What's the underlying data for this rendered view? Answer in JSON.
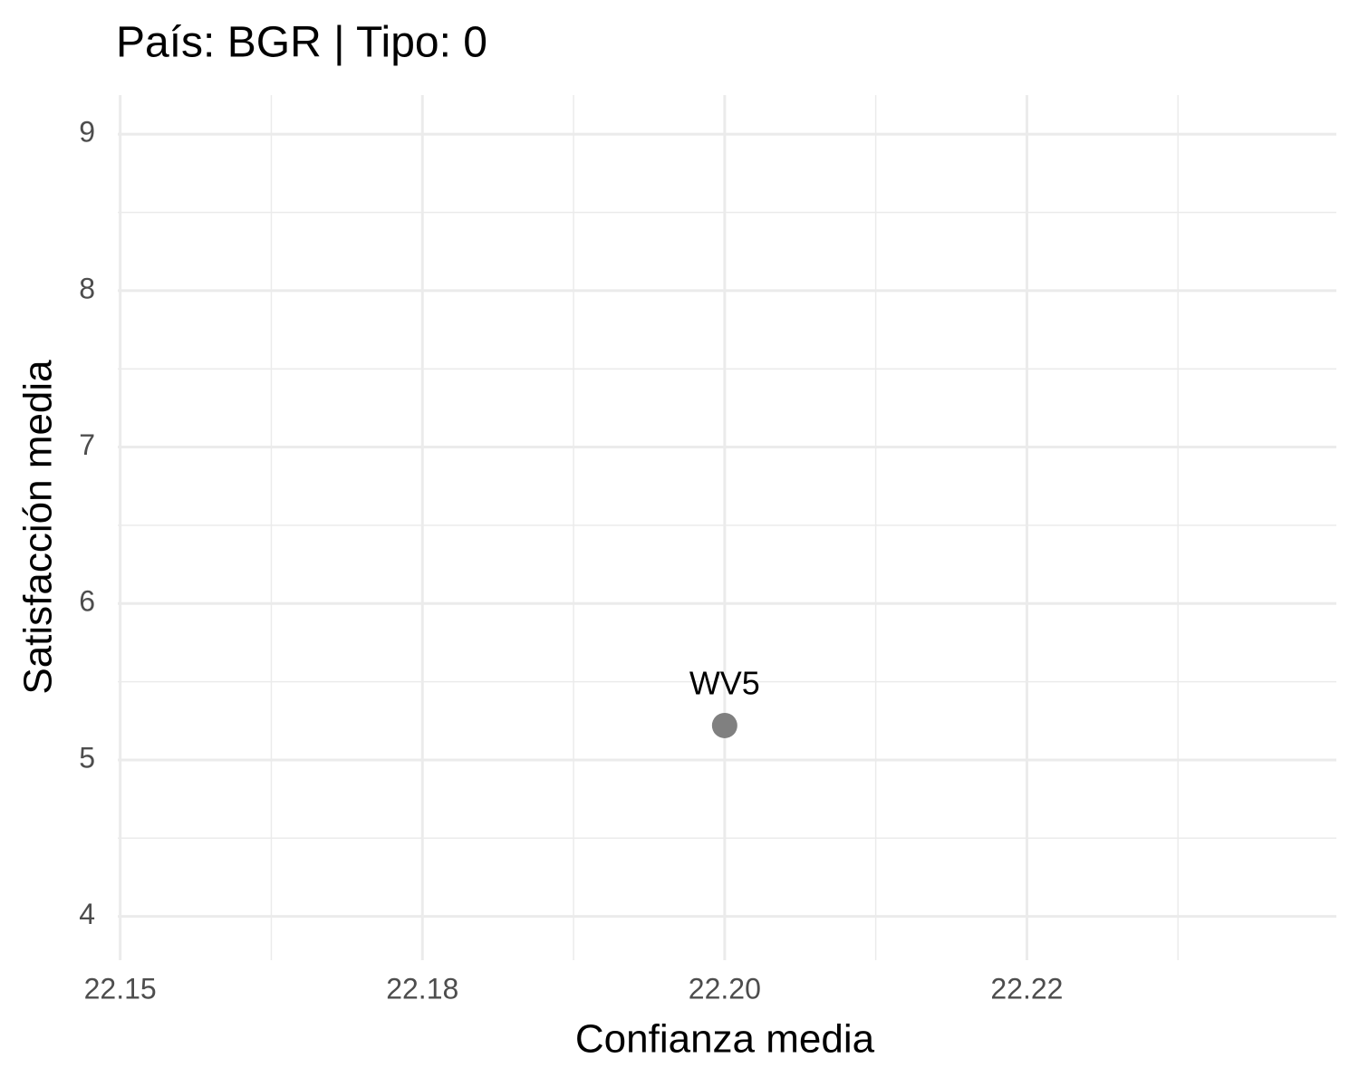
{
  "chart_data": {
    "type": "scatter",
    "title": "País: BGR | Tipo: 0",
    "xlabel": "Confianza media",
    "ylabel": "Satisfacción media",
    "x": [
      22.2
    ],
    "values": [
      5.22
    ],
    "labels": [
      "WV5"
    ],
    "color": "#808080",
    "xlim": [
      22.1498,
      22.2506
    ],
    "ylim": [
      3.72,
      9.25
    ],
    "xticks": [
      22.15,
      {
        "value": 22.175,
        "label": "22.18"
      },
      {
        "value": 22.2,
        "label": "22.20"
      },
      {
        "value": 22.225,
        "label": "22.22"
      }
    ],
    "xminor": [
      22.1625,
      22.1875,
      22.2125,
      22.2375
    ],
    "yticks": [
      4,
      5,
      6,
      7,
      8,
      9
    ],
    "yminor": [
      4.5,
      5.5,
      6.5,
      7.5,
      8.5
    ],
    "grid": true
  }
}
